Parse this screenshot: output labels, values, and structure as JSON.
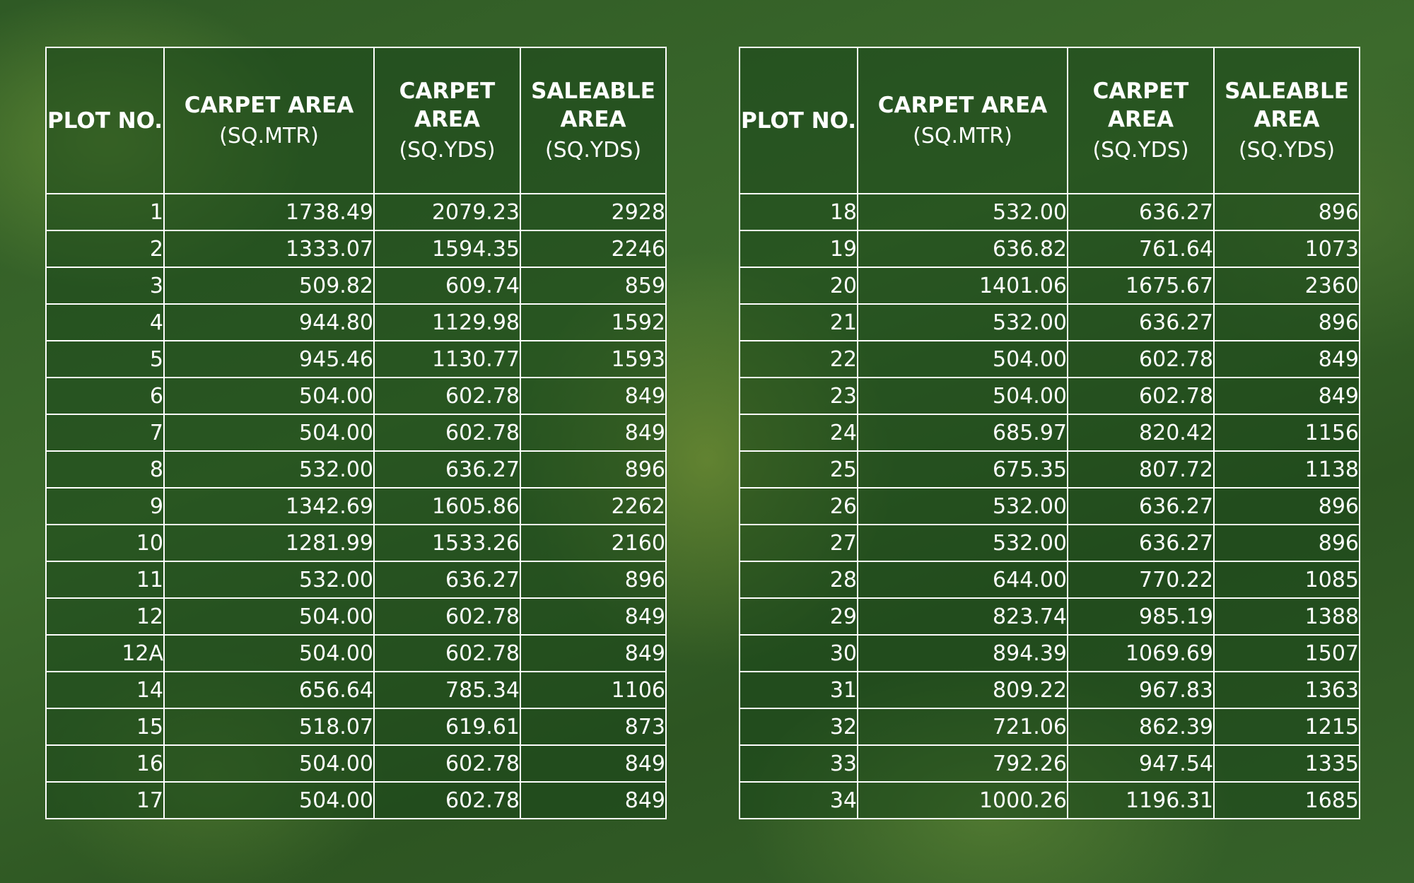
{
  "tables": [
    {
      "columns": [
        {
          "title": "PLOT NO."
        },
        {
          "title": "CARPET AREA",
          "unit": "(SQ.MTR)"
        },
        {
          "title": "CARPET AREA",
          "unit": "(SQ.YDS)"
        },
        {
          "title": "SALEABLE AREA",
          "unit": "(SQ.YDS)"
        }
      ],
      "rows": [
        [
          "1",
          "1738.49",
          "2079.23",
          "2928"
        ],
        [
          "2",
          "1333.07",
          "1594.35",
          "2246"
        ],
        [
          "3",
          "509.82",
          "609.74",
          "859"
        ],
        [
          "4",
          "944.80",
          "1129.98",
          "1592"
        ],
        [
          "5",
          "945.46",
          "1130.77",
          "1593"
        ],
        [
          "6",
          "504.00",
          "602.78",
          "849"
        ],
        [
          "7",
          "504.00",
          "602.78",
          "849"
        ],
        [
          "8",
          "532.00",
          "636.27",
          "896"
        ],
        [
          "9",
          "1342.69",
          "1605.86",
          "2262"
        ],
        [
          "10",
          "1281.99",
          "1533.26",
          "2160"
        ],
        [
          "11",
          "532.00",
          "636.27",
          "896"
        ],
        [
          "12",
          "504.00",
          "602.78",
          "849"
        ],
        [
          "12A",
          "504.00",
          "602.78",
          "849"
        ],
        [
          "14",
          "656.64",
          "785.34",
          "1106"
        ],
        [
          "15",
          "518.07",
          "619.61",
          "873"
        ],
        [
          "16",
          "504.00",
          "602.78",
          "849"
        ],
        [
          "17",
          "504.00",
          "602.78",
          "849"
        ]
      ]
    },
    {
      "columns": [
        {
          "title": "PLOT NO."
        },
        {
          "title": "CARPET AREA",
          "unit": "(SQ.MTR)"
        },
        {
          "title": "CARPET AREA",
          "unit": "(SQ.YDS)"
        },
        {
          "title": "SALEABLE AREA",
          "unit": "(SQ.YDS)"
        }
      ],
      "rows": [
        [
          "18",
          "532.00",
          "636.27",
          "896"
        ],
        [
          "19",
          "636.82",
          "761.64",
          "1073"
        ],
        [
          "20",
          "1401.06",
          "1675.67",
          "2360"
        ],
        [
          "21",
          "532.00",
          "636.27",
          "896"
        ],
        [
          "22",
          "504.00",
          "602.78",
          "849"
        ],
        [
          "23",
          "504.00",
          "602.78",
          "849"
        ],
        [
          "24",
          "685.97",
          "820.42",
          "1156"
        ],
        [
          "25",
          "675.35",
          "807.72",
          "1138"
        ],
        [
          "26",
          "532.00",
          "636.27",
          "896"
        ],
        [
          "27",
          "532.00",
          "636.27",
          "896"
        ],
        [
          "28",
          "644.00",
          "770.22",
          "1085"
        ],
        [
          "29",
          "823.74",
          "985.19",
          "1388"
        ],
        [
          "30",
          "894.39",
          "1069.69",
          "1507"
        ],
        [
          "31",
          "809.22",
          "967.83",
          "1363"
        ],
        [
          "32",
          "721.06",
          "862.39",
          "1215"
        ],
        [
          "33",
          "792.26",
          "947.54",
          "1335"
        ],
        [
          "34",
          "1000.26",
          "1196.31",
          "1685"
        ]
      ]
    }
  ]
}
